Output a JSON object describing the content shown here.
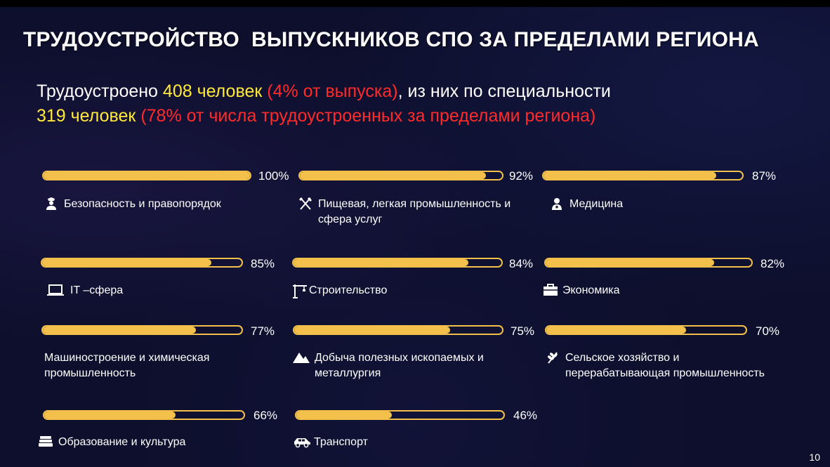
{
  "title": "ТРУДОУСТРОЙСТВО  ВЫПУСКНИКОВ СПО ЗА ПРЕДЕЛАМИ РЕГИОНА",
  "summary": {
    "line1": {
      "prefix": "Трудоустроено ",
      "count": "408 человек",
      "percent": " (4% от выпуска)",
      "suffix": ", из них по специальности"
    },
    "line2": {
      "count": "319 человек",
      "percent": " (78% от числа трудоустроенных за пределами региона)"
    }
  },
  "colors": {
    "background": "#0d0f2c",
    "bar": "#f3c04b",
    "highlight_yellow": "#ffe93a",
    "highlight_red": "#ff2b2b"
  },
  "sectors": [
    {
      "label": "Безопасность и правопорядок",
      "percent": "100%",
      "value": 1.0,
      "icon": "police-officer-icon"
    },
    {
      "label": "Пищевая, легкая промышленность и\nсфера услуг",
      "percent": "92%",
      "value": 0.92,
      "icon": "fork-knife-icon"
    },
    {
      "label": "Медицина",
      "percent": "87%",
      "value": 0.87,
      "icon": "doctor-icon"
    },
    {
      "label": "IT –сфера",
      "percent": "85%",
      "value": 0.85,
      "icon": "laptop-icon"
    },
    {
      "label": "Строительство",
      "percent": "84%",
      "value": 0.84,
      "icon": "crane-icon"
    },
    {
      "label": "Экономика",
      "percent": "82%",
      "value": 0.82,
      "icon": "briefcase-icon"
    },
    {
      "label": "Машиностроение и химическая\nпромышленность",
      "percent": "77%",
      "value": 0.77,
      "icon": ""
    },
    {
      "label": "Добыча полезных ископаемых и\nметаллургия",
      "percent": "75%",
      "value": 0.75,
      "icon": "mountain-icon"
    },
    {
      "label": "Сельское хозяйство и\nперерабатывающая промышленность",
      "percent": "70%",
      "value": 0.7,
      "icon": "wheat-icon"
    },
    {
      "label": "Образование и культура",
      "percent": "66%",
      "value": 0.66,
      "icon": "books-icon"
    },
    {
      "label": "Транспорт",
      "percent": "46%",
      "value": 0.46,
      "icon": "car-icon"
    }
  ],
  "page_number": "10"
}
